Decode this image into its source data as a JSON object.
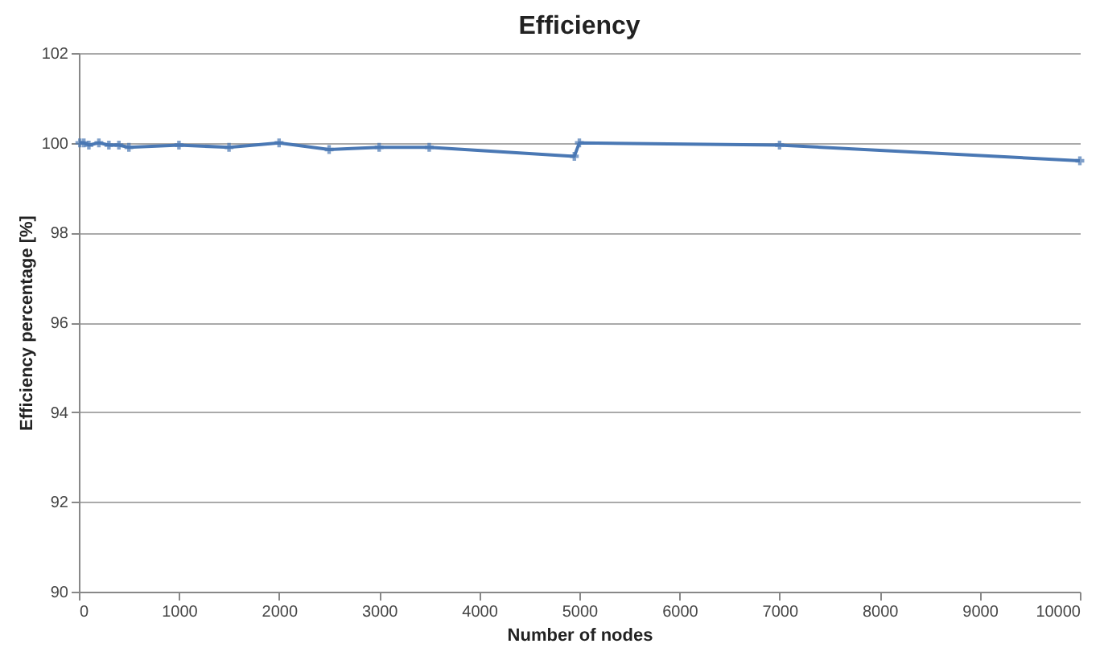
{
  "chart_data": {
    "type": "line",
    "title": "Efficiency",
    "xlabel": "Number of nodes",
    "ylabel": "Efficiency percentage [%]",
    "x": [
      10,
      50,
      100,
      200,
      300,
      400,
      500,
      1000,
      1500,
      2000,
      2500,
      3000,
      3500,
      4950,
      5000,
      7000,
      10000
    ],
    "series": [
      {
        "color": "#4a78b4",
        "values": [
          100.0,
          100.0,
          99.95,
          100.0,
          99.95,
          99.95,
          99.9,
          99.95,
          99.9,
          100.0,
          99.85,
          99.9,
          99.9,
          99.7,
          100.0,
          99.95,
          99.6
        ]
      }
    ],
    "xlim": [
      0,
      10000
    ],
    "xticks": [
      0,
      1000,
      2000,
      3000,
      4000,
      5000,
      6000,
      7000,
      8000,
      9000,
      10000
    ],
    "ylim": [
      90,
      102
    ],
    "yticks": [
      90,
      92,
      94,
      96,
      98,
      100,
      102
    ],
    "grid": "y",
    "marker": "cross",
    "legend": false
  }
}
